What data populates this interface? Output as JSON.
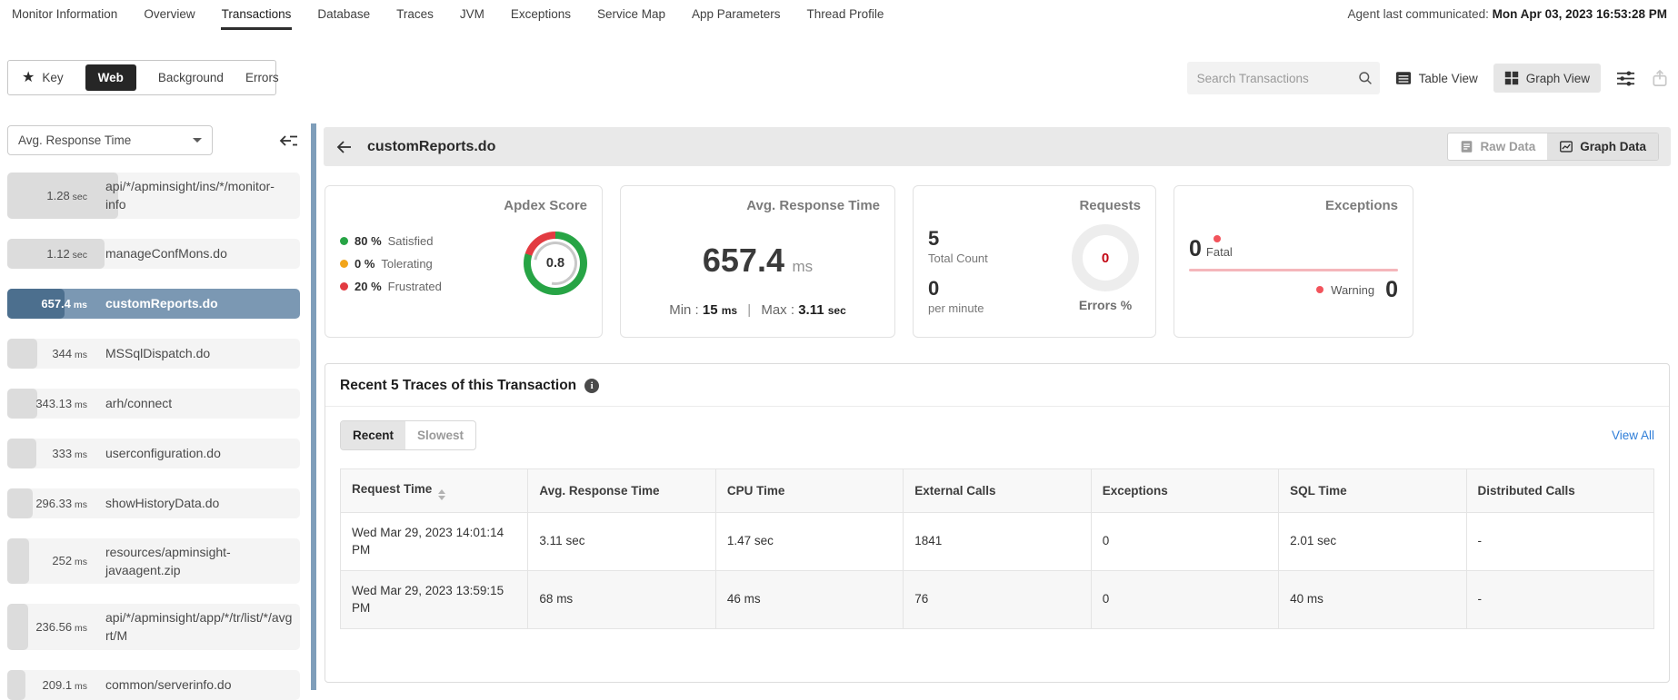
{
  "topnav": {
    "items": [
      "Monitor Information",
      "Overview",
      "Transactions",
      "Database",
      "Traces",
      "JVM",
      "Exceptions",
      "Service Map",
      "App Parameters",
      "Thread Profile"
    ],
    "active": "Transactions",
    "agent_label": "Agent last communicated:",
    "agent_value": "Mon Apr 03, 2023 16:53:28 PM"
  },
  "toolbar": {
    "tabs": [
      {
        "label": "Key"
      },
      {
        "label": "Web"
      },
      {
        "label": "Background"
      },
      {
        "label": "Errors"
      }
    ],
    "active_tab": "Web",
    "search_placeholder": "Search Transactions",
    "table_view_label": "Table View",
    "graph_view_label": "Graph View"
  },
  "sidebar": {
    "sort_selected": "Avg. Response Time",
    "max_ms": 1280,
    "items": [
      {
        "time": "1.28",
        "unit": "sec",
        "ms": 1280,
        "name": "api/*/apminsight/ins/*/monitor-info",
        "selected": false
      },
      {
        "time": "1.12",
        "unit": "sec",
        "ms": 1120,
        "name": "manageConfMons.do",
        "selected": false
      },
      {
        "time": "657.4",
        "unit": "ms",
        "ms": 657.4,
        "name": "customReports.do",
        "selected": true
      },
      {
        "time": "344",
        "unit": "ms",
        "ms": 344,
        "name": "MSSqlDispatch.do",
        "selected": false
      },
      {
        "time": "343.13",
        "unit": "ms",
        "ms": 343.13,
        "name": "arh/connect",
        "selected": false
      },
      {
        "time": "333",
        "unit": "ms",
        "ms": 333,
        "name": "userconfiguration.do",
        "selected": false
      },
      {
        "time": "296.33",
        "unit": "ms",
        "ms": 296.33,
        "name": "showHistoryData.do",
        "selected": false
      },
      {
        "time": "252",
        "unit": "ms",
        "ms": 252,
        "name": "resources/apminsight-javaagent.zip",
        "selected": false
      },
      {
        "time": "236.56",
        "unit": "ms",
        "ms": 236.56,
        "name": "api/*/apminsight/app/*/tr/list/*/avgrt/M",
        "selected": false
      },
      {
        "time": "209.1",
        "unit": "ms",
        "ms": 209.1,
        "name": "common/serverinfo.do",
        "selected": false
      }
    ]
  },
  "detail": {
    "title": "customReports.do",
    "raw_data_label": "Raw Data",
    "graph_data_label": "Graph Data"
  },
  "cards": {
    "apdex": {
      "title": "Apdex Score",
      "score": "0.8",
      "satisfied_pct": 80,
      "legend": [
        {
          "pct": "80 %",
          "label": "Satisfied",
          "color": "#27a445"
        },
        {
          "pct": "0 %",
          "label": "Tolerating",
          "color": "#f2a51a"
        },
        {
          "pct": "20 %",
          "label": "Frustrated",
          "color": "#e23b41"
        }
      ]
    },
    "avg_response_time": {
      "title": "Avg. Response Time",
      "value": "657.4",
      "unit": "ms",
      "min_label": "Min :",
      "min_value": "15",
      "min_unit": "ms",
      "divider": "|",
      "max_label": "Max :",
      "max_value": "3.11",
      "max_unit": "sec"
    },
    "requests": {
      "title": "Requests",
      "total_value": "5",
      "total_label": "Total Count",
      "per_minute_value": "0",
      "per_minute_label": "per minute",
      "errors_value": "0",
      "errors_label": "Errors %"
    },
    "exceptions": {
      "title": "Exceptions",
      "fatal_value": "0",
      "fatal_label": "Fatal",
      "warning_value": "0",
      "warning_label": "Warning"
    }
  },
  "traces": {
    "title": "Recent 5 Traces of this Transaction",
    "tabs": [
      "Recent",
      "Slowest"
    ],
    "active_tab": "Recent",
    "view_all_label": "View All",
    "table": {
      "columns": [
        "Request Time",
        "Avg. Response Time",
        "CPU Time",
        "External Calls",
        "Exceptions",
        "SQL Time",
        "Distributed Calls"
      ],
      "sorted_column": "Request Time",
      "rows": [
        [
          "Wed Mar 29, 2023 14:01:14 PM",
          "3.11 sec",
          "1.47 sec",
          "1841",
          "0",
          "2.01 sec",
          "-"
        ],
        [
          "Wed Mar 29, 2023 13:59:15 PM",
          "68 ms",
          "46 ms",
          "76",
          "0",
          "40 ms",
          "-"
        ]
      ]
    }
  }
}
